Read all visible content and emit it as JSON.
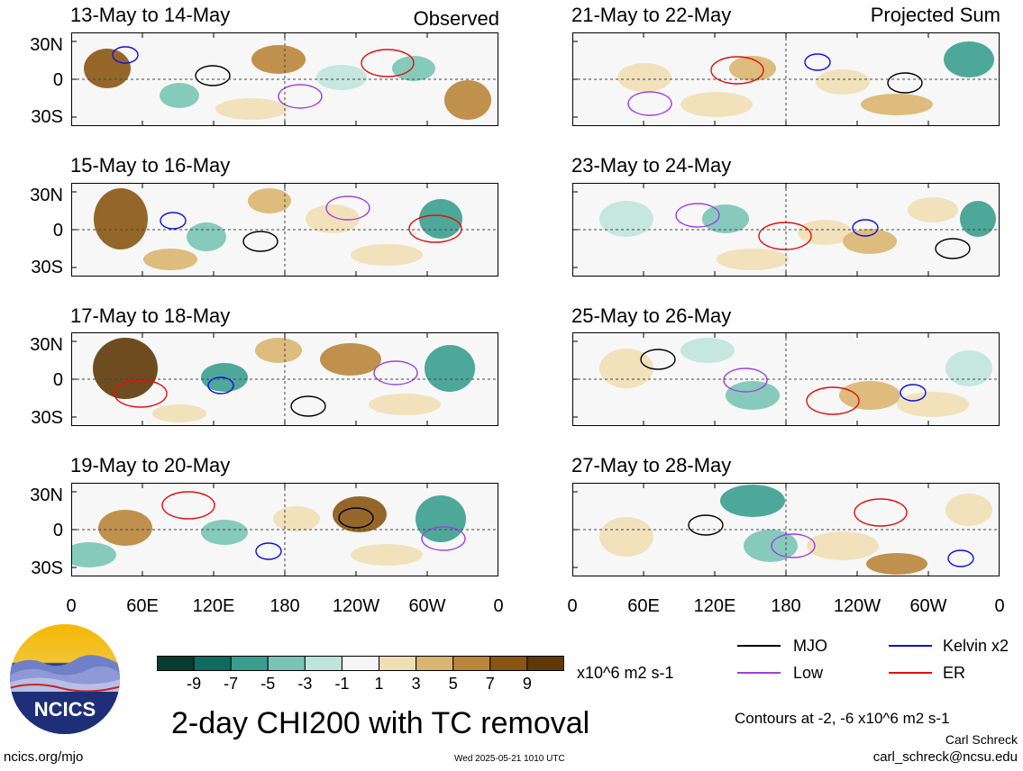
{
  "panels": [
    {
      "title": "13-May to 14-May",
      "tag": "Observed"
    },
    {
      "title": "15-May to 16-May",
      "tag": ""
    },
    {
      "title": "17-May to 18-May",
      "tag": ""
    },
    {
      "title": "19-May to 20-May",
      "tag": ""
    },
    {
      "title": "21-May to 22-May",
      "tag": "Projected Sum"
    },
    {
      "title": "23-May to 24-May",
      "tag": ""
    },
    {
      "title": "25-May to 26-May",
      "tag": ""
    },
    {
      "title": "27-May to 28-May",
      "tag": ""
    }
  ],
  "axes": {
    "lat_labels": [
      "30N",
      "0",
      "30S"
    ],
    "lon_labels": [
      "0",
      "60E",
      "120E",
      "180",
      "120W",
      "60W",
      "0"
    ]
  },
  "colorbar": {
    "labels": [
      "-9",
      "-7",
      "-5",
      "-3",
      "-1",
      "1",
      "3",
      "5",
      "7",
      "9"
    ],
    "colors": [
      "#073c33",
      "#0f6b5e",
      "#3a9e8e",
      "#79c4b5",
      "#bfe4da",
      "#f5f5f5",
      "#f0dfb5",
      "#d9b56f",
      "#b8853a",
      "#8a5512",
      "#5f3807"
    ],
    "units": "x10^6 m2 s-1"
  },
  "title": "2-day CHI200 with TC removal",
  "legend": [
    {
      "label": "MJO",
      "color": "#000000"
    },
    {
      "label": "Kelvin x2",
      "color": "#1010e0"
    },
    {
      "label": "Low",
      "color": "#a040e0"
    },
    {
      "label": "ER",
      "color": "#e01010"
    }
  ],
  "contours_note": "Contours at -2, -6 x10^6 m2 s-1",
  "author": "Carl Schreck",
  "email": "carl_schreck@ncsu.edu",
  "url": "ncics.org/mjo",
  "timestamp": "Wed 2025-05-21 1010 UTC",
  "logo_text": "NCICS"
}
